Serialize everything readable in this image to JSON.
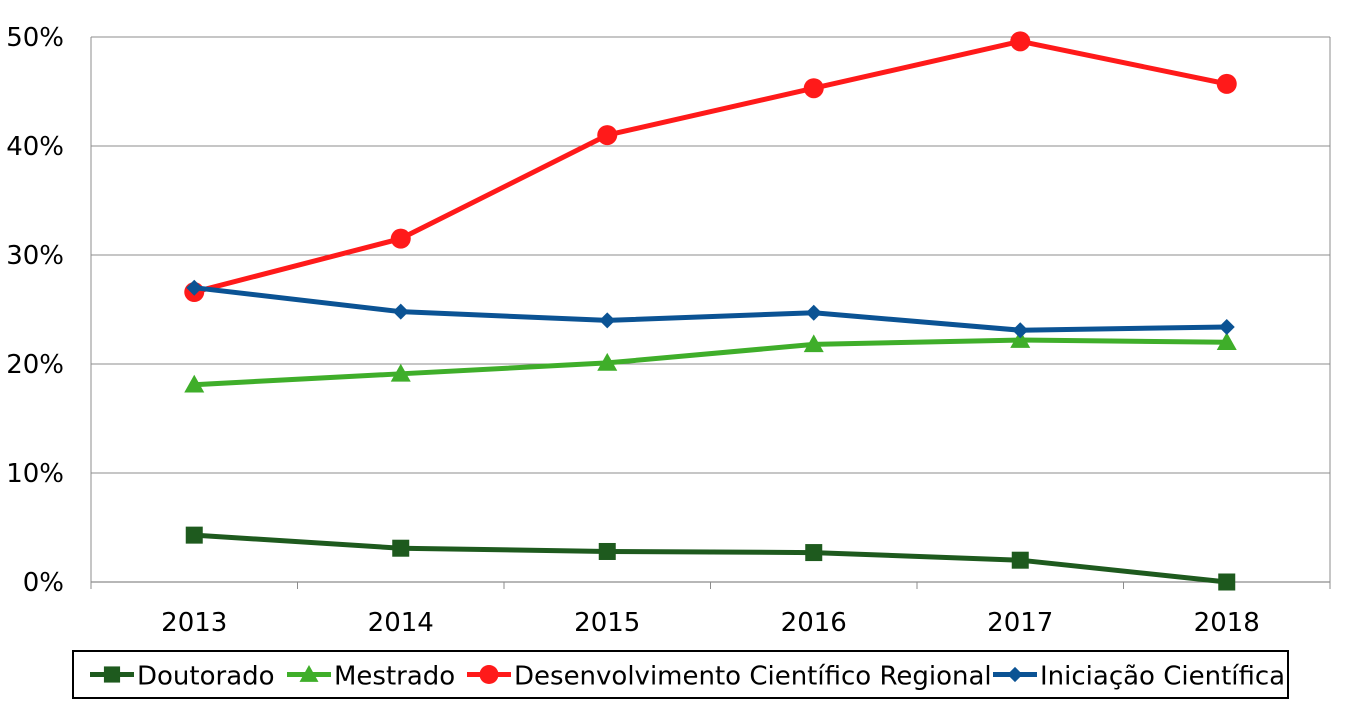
{
  "chart_data": {
    "type": "line",
    "title": "",
    "xlabel": "",
    "ylabel": "",
    "categories": [
      "2013",
      "2014",
      "2015",
      "2016",
      "2017",
      "2018"
    ],
    "ylim": [
      0,
      50
    ],
    "y_ticks": [
      0,
      10,
      20,
      30,
      40,
      50
    ],
    "y_tick_labels": [
      "0%",
      "10%",
      "20%",
      "30%",
      "40%",
      "50%"
    ],
    "grid": true,
    "legend_position": "bottom",
    "series": [
      {
        "name": "Doutorado",
        "color": "#1e5a1e",
        "marker": "square",
        "values": [
          4.3,
          3.1,
          2.8,
          2.7,
          2.0,
          0.0
        ]
      },
      {
        "name": "Mestrado",
        "color": "#3fae2a",
        "marker": "triangle",
        "values": [
          18.1,
          19.1,
          20.1,
          21.8,
          22.2,
          22.0
        ]
      },
      {
        "name": "Desenvolvimento Científico Regional",
        "color": "#ff1a1a",
        "marker": "circle",
        "values": [
          26.6,
          31.5,
          41.0,
          45.3,
          49.6,
          45.7
        ]
      },
      {
        "name": "Iniciação Científica",
        "color": "#0b5394",
        "marker": "diamond",
        "values": [
          27.0,
          24.8,
          24.0,
          24.7,
          23.1,
          23.4
        ]
      }
    ]
  }
}
